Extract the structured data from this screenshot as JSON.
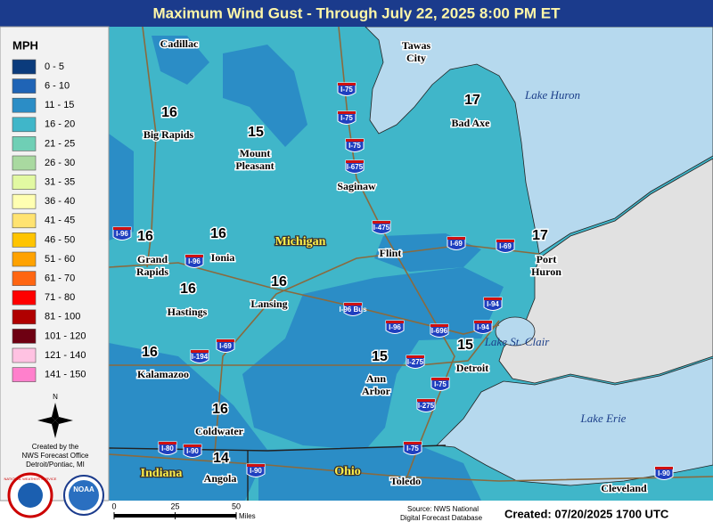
{
  "header": {
    "title": "Maximum Wind Gust - Through July 22, 2025 8:00 PM ET"
  },
  "legend": {
    "unit": "MPH",
    "items": [
      {
        "label": "0 - 5",
        "color": "#0b3b7c"
      },
      {
        "label": "6 - 10",
        "color": "#1f64b6"
      },
      {
        "label": "11 - 15",
        "color": "#2b8dc6"
      },
      {
        "label": "16 - 20",
        "color": "#40b6c9"
      },
      {
        "label": "21 - 25",
        "color": "#6fcfb5"
      },
      {
        "label": "26 - 30",
        "color": "#a9d9a0"
      },
      {
        "label": "31 - 35",
        "color": "#e2f9a2"
      },
      {
        "label": "36 - 40",
        "color": "#ffffb2"
      },
      {
        "label": "41 - 45",
        "color": "#ffe371"
      },
      {
        "label": "46 - 50",
        "color": "#ffc400"
      },
      {
        "label": "51 - 60",
        "color": "#ffa200"
      },
      {
        "label": "61 - 70",
        "color": "#ff6612"
      },
      {
        "label": "71 - 80",
        "color": "#ff0000"
      },
      {
        "label": "81 - 100",
        "color": "#b00000"
      },
      {
        "label": "101 - 120",
        "color": "#6e0012"
      },
      {
        "label": "121 - 140",
        "color": "#ffc2e2"
      },
      {
        "label": "141 - 150",
        "color": "#ff80cc"
      }
    ]
  },
  "map": {
    "cities": [
      {
        "name": "Cadillac"
      },
      {
        "name": "Tawas City"
      },
      {
        "name": "Bad Axe",
        "value": 17
      },
      {
        "name": "Big Rapids",
        "value": 16
      },
      {
        "name": "Mount Pleasant",
        "value": 15
      },
      {
        "name": "Saginaw"
      },
      {
        "name": "Grand Rapids",
        "value": 16
      },
      {
        "name": "Ionia",
        "value": 16
      },
      {
        "name": "Flint"
      },
      {
        "name": "Port Huron",
        "value": 17
      },
      {
        "name": "Hastings",
        "value": 16
      },
      {
        "name": "Lansing",
        "value": 16
      },
      {
        "name": "Detroit",
        "value": 15
      },
      {
        "name": "Kalamazoo",
        "value": 16
      },
      {
        "name": "Ann Arbor",
        "value": 15
      },
      {
        "name": "Coldwater",
        "value": 16
      },
      {
        "name": "Angola",
        "value": 14
      },
      {
        "name": "Toledo"
      },
      {
        "name": "Cleveland"
      }
    ],
    "states": [
      "Michigan",
      "Indiana",
      "Ohio"
    ],
    "lakes": [
      "Lake Huron",
      "Lake St. Clair",
      "Lake Erie"
    ],
    "shields": [
      "I-75",
      "I-75",
      "I-75",
      "I-675",
      "I-475",
      "I-69",
      "I-69",
      "I-96",
      "I-96",
      "I-96 Bus",
      "I-96",
      "I-94",
      "I-94",
      "I-696",
      "I-275",
      "I-75",
      "I-275",
      "I-194",
      "I-69",
      "I-80",
      "I-90",
      "I-90",
      "I-75",
      "I-90"
    ],
    "compass": "N"
  },
  "credits": {
    "lines": [
      "Created by the",
      "NWS Forecast Office",
      "Detroit/Pontiac, MI"
    ],
    "nws_logo": "NATIONAL WEATHER SERVICE",
    "noaa_logo": "NOAA"
  },
  "scale": {
    "ticks": [
      0,
      25,
      50
    ],
    "unit": "Miles"
  },
  "footer": {
    "source": [
      "Source: NWS National",
      "Digital Forecast Database"
    ],
    "created": "Created: 07/20/2025 1700 UTC"
  }
}
